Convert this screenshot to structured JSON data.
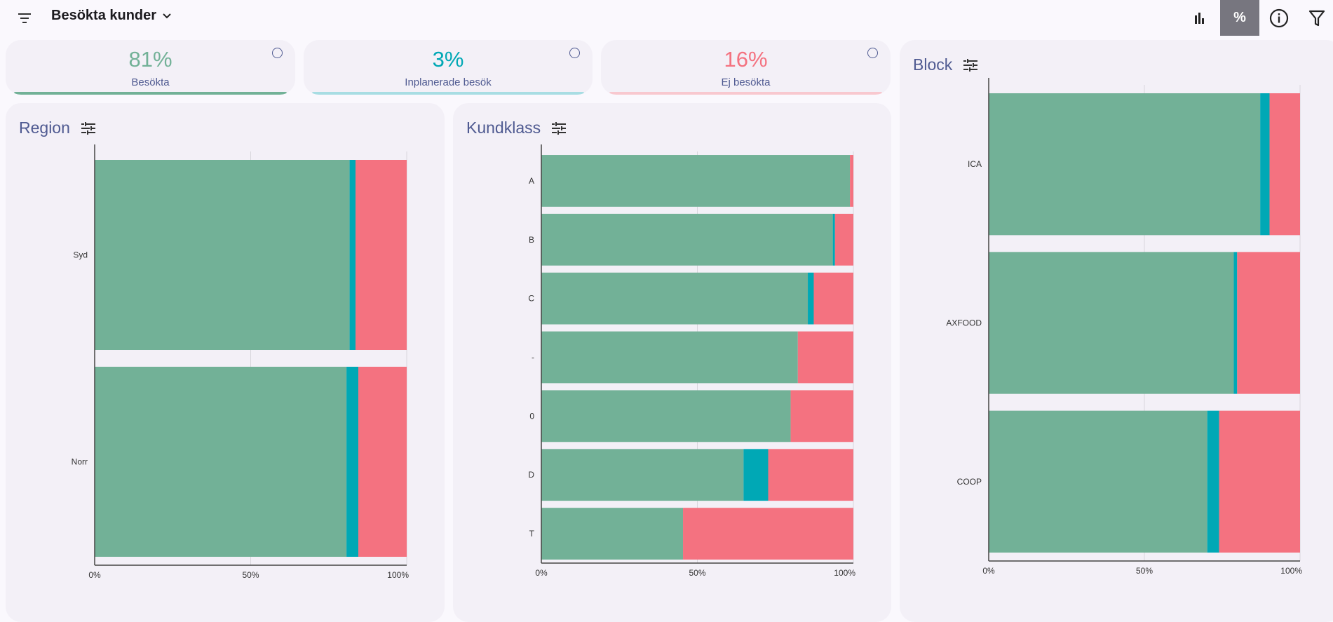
{
  "header": {
    "title": "Besökta kunder",
    "icons": [
      "filter-list-icon",
      "chevron-down-icon",
      "bar-chart-icon",
      "percent-icon",
      "info-icon",
      "filter-funnel-icon"
    ],
    "percent_label": "%"
  },
  "colors": {
    "visited": "#72b197",
    "planned": "#00a8b5",
    "not_visited": "#f47280",
    "accent": "#4f5a91"
  },
  "kpis": [
    {
      "value": "81%",
      "label": "Besökta",
      "color": "#72b197"
    },
    {
      "value": "3%",
      "label": "Inplanerade besök",
      "color": "#00a8b5"
    },
    {
      "value": "16%",
      "label": "Ej besökta",
      "color": "#f47280"
    }
  ],
  "chart_data": [
    {
      "type": "bar",
      "orientation": "horizontal",
      "stacked": true,
      "title": "Region",
      "categories": [
        "Syd",
        "Norr"
      ],
      "series": [
        {
          "values": [
            81.7,
            80.7
          ],
          "color": "#72b197"
        },
        {
          "values": [
            1.9,
            3.8
          ],
          "color": "#00a8b5"
        },
        {
          "values": [
            16.4,
            15.5
          ],
          "color": "#f47280"
        }
      ],
      "xlim": [
        0,
        100
      ],
      "xticks": [
        "0%",
        "50%",
        "100%"
      ],
      "grid": true
    },
    {
      "type": "bar",
      "orientation": "horizontal",
      "stacked": true,
      "title": "Kundklass",
      "categories": [
        "A",
        "B",
        "C",
        "-",
        "0",
        "D",
        "T"
      ],
      "series": [
        {
          "values": [
            98.9,
            93.4,
            85.4,
            82.2,
            79.9,
            64.8,
            45.4
          ],
          "color": "#72b197"
        },
        {
          "values": [
            0,
            0.7,
            1.9,
            0,
            0,
            7.9,
            0
          ],
          "color": "#00a8b5"
        },
        {
          "values": [
            1.1,
            5.9,
            12.7,
            17.8,
            20.1,
            27.3,
            54.6
          ],
          "color": "#f47280"
        }
      ],
      "xlim": [
        0,
        100
      ],
      "xticks": [
        "0%",
        "50%",
        "100%"
      ],
      "grid": true
    },
    {
      "type": "bar",
      "orientation": "horizontal",
      "stacked": true,
      "title": "Block",
      "categories": [
        "ICA",
        "AXFOOD",
        "COOP"
      ],
      "series": [
        {
          "values": [
            87.2,
            78.7,
            70.2
          ],
          "color": "#72b197"
        },
        {
          "values": [
            3.0,
            1.1,
            3.8
          ],
          "color": "#00a8b5"
        },
        {
          "values": [
            9.8,
            20.2,
            26.0
          ],
          "color": "#f47280"
        }
      ],
      "xlim": [
        0,
        100
      ],
      "xticks": [
        "0%",
        "50%",
        "100%"
      ],
      "grid": true
    }
  ]
}
